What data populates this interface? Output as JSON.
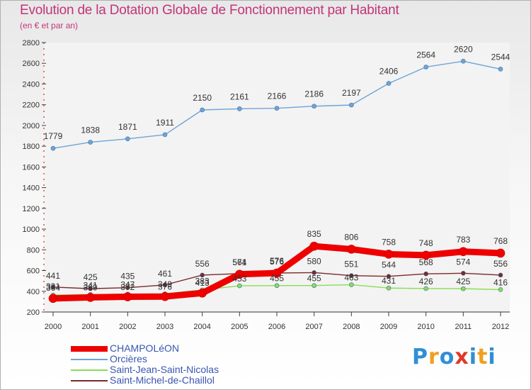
{
  "title": "Evolution de la Dotation Globale de Fonctionnement par Habitant",
  "subtitle": "(en € et par an)",
  "logo": {
    "letters": [
      "P",
      "r",
      "o",
      "x",
      "i",
      "t",
      "i"
    ],
    "colors": [
      "#2f8fd6",
      "#f0a020",
      "#2f8fd6",
      "#e0392b",
      "#2f8fd6",
      "#f0a020",
      "#2f8fd6"
    ]
  },
  "chart_data": {
    "type": "line",
    "title": "Evolution de la Dotation Globale de Fonctionnement par Habitant",
    "subtitle": "(en € et par an)",
    "xlabel": "",
    "ylabel": "",
    "x": [
      "2000",
      "2001",
      "2002",
      "2003",
      "2004",
      "2005",
      "2006",
      "2007",
      "2008",
      "2009",
      "2010",
      "2011",
      "2012"
    ],
    "ylim": [
      200,
      2800
    ],
    "yticks": [
      200,
      400,
      600,
      800,
      1000,
      1200,
      1400,
      1600,
      1800,
      2000,
      2200,
      2400,
      2600,
      2800
    ],
    "grid": false,
    "legend_position": "bottom-left",
    "series": [
      {
        "name": "CHAMPOLéON",
        "color": "#ee0000",
        "values": [
          331,
          341,
          347,
          349,
          383,
          564,
          576,
          835,
          806,
          758,
          748,
          783,
          768
        ]
      },
      {
        "name": "Orcières",
        "color": "#6fa4d6",
        "values": [
          1779,
          1838,
          1871,
          1911,
          2150,
          2161,
          2166,
          2186,
          2197,
          2406,
          2564,
          2620,
          2544
        ]
      },
      {
        "name": "Saint-Jean-Saint-Nicolas",
        "color": "#88dd55",
        "values": [
          364,
          369,
          372,
          376,
          413,
          453,
          455,
          455,
          463,
          431,
          426,
          425,
          416
        ]
      },
      {
        "name": "Saint-Michel-de-Chaillol",
        "color": "#7a2a2a",
        "values": [
          441,
          425,
          435,
          461,
          556,
          571,
          576,
          580,
          551,
          544,
          568,
          574,
          556
        ]
      }
    ]
  }
}
